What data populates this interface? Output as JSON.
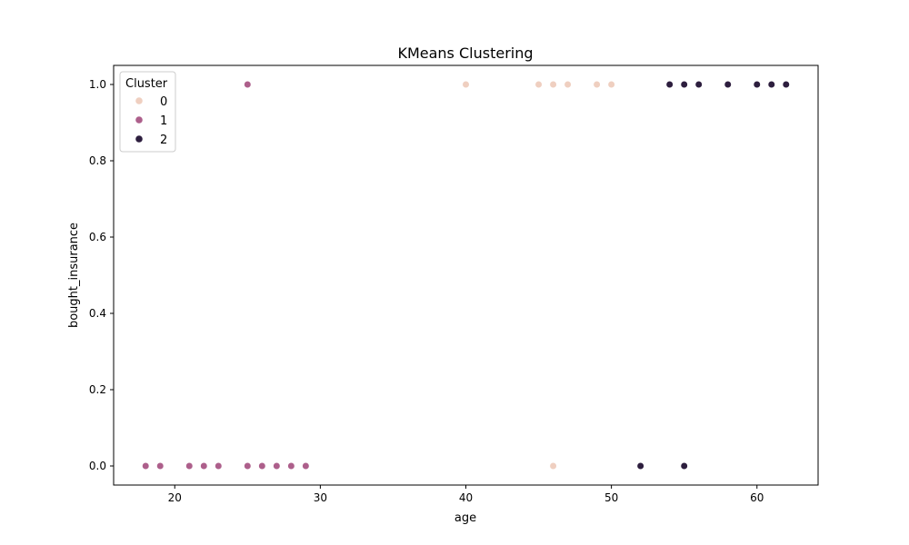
{
  "chart_data": {
    "type": "scatter",
    "title": "KMeans Clustering",
    "xlabel": "age",
    "ylabel": "bought_insurance",
    "xlim": [
      15.8,
      64.2
    ],
    "ylim": [
      -0.05,
      1.05
    ],
    "xticks": [
      20,
      30,
      40,
      50,
      60
    ],
    "yticks": [
      0.0,
      0.2,
      0.4,
      0.6,
      0.8,
      1.0
    ],
    "grid": false,
    "legend": {
      "title": "Cluster",
      "placement": "top-left"
    },
    "series": [
      {
        "name": "0",
        "color": "#efcfc0",
        "points": [
          [
            40,
            1
          ],
          [
            45,
            1
          ],
          [
            46,
            1
          ],
          [
            47,
            1
          ],
          [
            49,
            1
          ],
          [
            50,
            1
          ],
          [
            46,
            0
          ]
        ]
      },
      {
        "name": "1",
        "color": "#ad5f8b",
        "points": [
          [
            25,
            1
          ],
          [
            18,
            0
          ],
          [
            19,
            0
          ],
          [
            21,
            0
          ],
          [
            22,
            0
          ],
          [
            23,
            0
          ],
          [
            25,
            0
          ],
          [
            26,
            0
          ],
          [
            27,
            0
          ],
          [
            28,
            0
          ],
          [
            29,
            0
          ]
        ]
      },
      {
        "name": "2",
        "color": "#2d1e3e",
        "points": [
          [
            54,
            1
          ],
          [
            55,
            1
          ],
          [
            56,
            1
          ],
          [
            58,
            1
          ],
          [
            60,
            1
          ],
          [
            61,
            1
          ],
          [
            62,
            1
          ],
          [
            52,
            0
          ],
          [
            55,
            0
          ]
        ]
      }
    ]
  }
}
